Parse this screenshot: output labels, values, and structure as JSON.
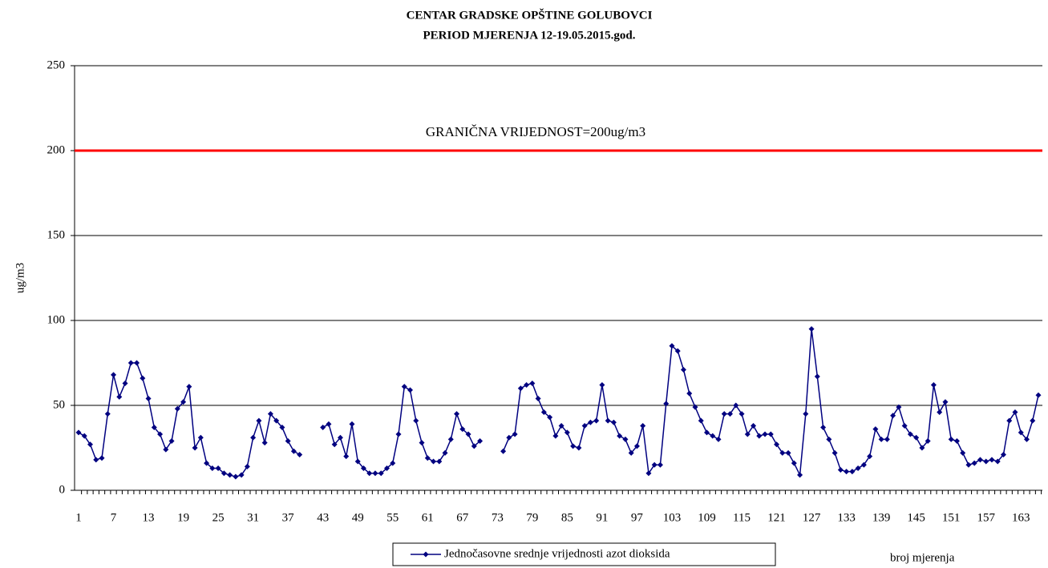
{
  "chart_data": {
    "type": "line",
    "title": "CENTAR GRADSKE OPŠTINE GOLUBOVCI",
    "subtitle": "PERIOD MJERENJA 12-19.05.2015.god.",
    "y_label": "ug/m3",
    "x_label": "broj mjerenja",
    "annotation": "GRANIČNA VRIJEDNOST=200ug/m3",
    "limit": 200,
    "limit_color": "#ff0000",
    "ylim": [
      0,
      250
    ],
    "yticks": [
      0,
      50,
      100,
      150,
      200,
      250
    ],
    "grid": true,
    "legend": "bottom",
    "categories": [
      1,
      null,
      null,
      null,
      null,
      null,
      7,
      null,
      null,
      null,
      null,
      null,
      13,
      null,
      null,
      null,
      null,
      null,
      19,
      null,
      null,
      null,
      null,
      null,
      25,
      null,
      null,
      null,
      null,
      null,
      31,
      null,
      null,
      null,
      null,
      null,
      37,
      null,
      null,
      null,
      null,
      null,
      43,
      null,
      null,
      null,
      null,
      null,
      49,
      null,
      null,
      null,
      null,
      null,
      55,
      null,
      null,
      null,
      null,
      null,
      61,
      null,
      null,
      null,
      null,
      null,
      67,
      null,
      null,
      null,
      null,
      null,
      73,
      null,
      null,
      null,
      null,
      null,
      79,
      null,
      null,
      null,
      null,
      null,
      85,
      null,
      null,
      null,
      null,
      null,
      91,
      null,
      null,
      null,
      null,
      null,
      97,
      null,
      null,
      null,
      null,
      null,
      103,
      null,
      null,
      null,
      null,
      null,
      109,
      null,
      null,
      null,
      null,
      null,
      115,
      null,
      null,
      null,
      null,
      null,
      121,
      null,
      null,
      null,
      null,
      null,
      127,
      null,
      null,
      null,
      null,
      null,
      133,
      null,
      null,
      null,
      null,
      null,
      139,
      null,
      null,
      null,
      null,
      null,
      145,
      null,
      null,
      null,
      null,
      null,
      151,
      null,
      null,
      null,
      null,
      null,
      157,
      null,
      null,
      null,
      null,
      null,
      163,
      null,
      null,
      null
    ],
    "series": [
      {
        "name": "Jednočasovne srednje vrijednosti azot dioksida",
        "color": "#000080",
        "values": [
          34,
          32,
          27,
          18,
          19,
          45,
          68,
          55,
          63,
          75,
          75,
          66,
          54,
          37,
          33,
          24,
          29,
          48,
          52,
          61,
          25,
          31,
          16,
          13,
          13,
          10,
          9,
          8,
          9,
          14,
          31,
          41,
          28,
          45,
          41,
          37,
          29,
          23,
          21,
          null,
          null,
          null,
          37,
          39,
          27,
          31,
          20,
          39,
          17,
          13,
          10,
          10,
          10,
          13,
          16,
          33,
          61,
          59,
          41,
          28,
          19,
          17,
          17,
          22,
          30,
          45,
          36,
          33,
          26,
          29,
          null,
          null,
          null,
          23,
          31,
          33,
          60,
          62,
          63,
          54,
          46,
          43,
          32,
          38,
          34,
          26,
          25,
          38,
          40,
          41,
          62,
          41,
          40,
          32,
          30,
          22,
          26,
          38,
          10,
          15,
          15,
          51,
          85,
          82,
          71,
          57,
          49,
          41,
          34,
          32,
          30,
          45,
          45,
          50,
          45,
          33,
          38,
          32,
          33,
          33,
          27,
          22,
          22,
          16,
          9,
          45,
          95,
          67,
          37,
          30,
          22,
          12,
          11,
          11,
          13,
          15,
          20,
          36,
          30,
          30,
          44,
          49,
          38,
          33,
          31,
          25,
          29,
          62,
          46,
          52,
          30,
          29,
          22,
          15,
          16,
          18,
          17,
          18,
          17,
          21,
          41,
          46,
          34,
          30,
          41,
          56
        ]
      }
    ]
  }
}
